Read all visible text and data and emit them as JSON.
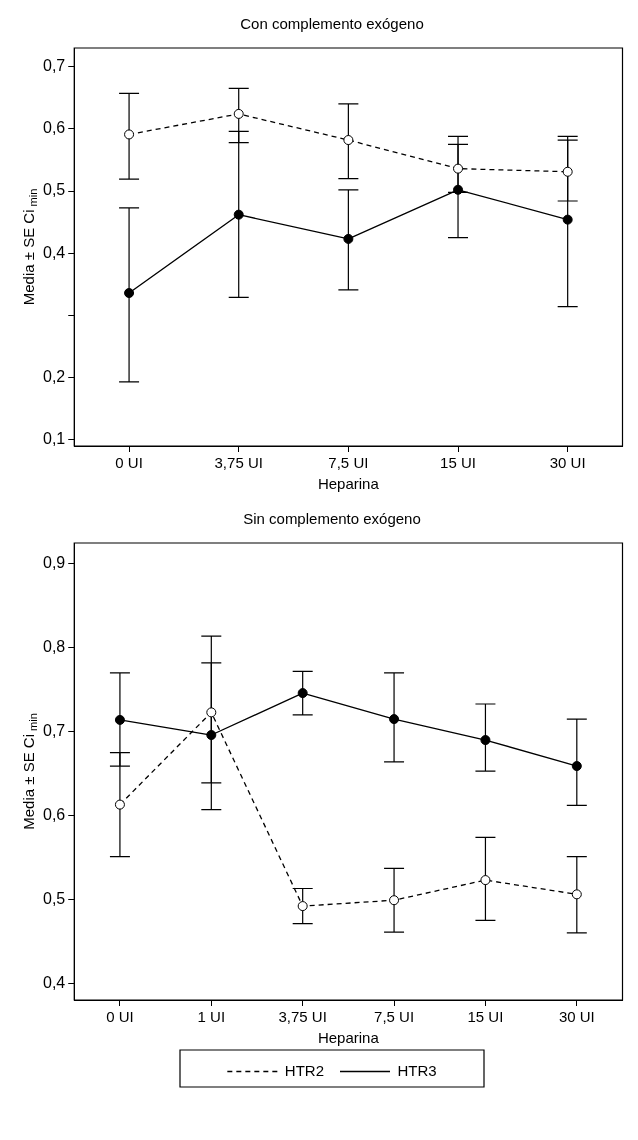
{
  "chart_data": [
    {
      "type": "line",
      "title": "Con complemento exógeno",
      "xlabel": "Heparina",
      "ylabel": "Media ± SE Ci$_{min}$",
      "categories": [
        "0 UI",
        "3,75 UI",
        "7,5 UI",
        "15 UI",
        "30 UI"
      ],
      "series": [
        {
          "color": "#000000",
          "line_style": "dashed",
          "values": [
            0.591,
            0.624,
            0.582,
            0.536,
            0.531
          ],
          "errors": [
            [
              0.519,
              0.657
            ],
            [
              0.578,
              0.665
            ],
            [
              0.52,
              0.64
            ],
            [
              0.498,
              0.575
            ],
            [
              0.484,
              0.582
            ]
          ]
        },
        {
          "color": "#000000",
          "line_style": "solid",
          "values": [
            0.336,
            0.462,
            0.423,
            0.502,
            0.454
          ],
          "errors": [
            [
              0.193,
              0.473
            ],
            [
              0.329,
              0.596
            ],
            [
              0.341,
              0.502
            ],
            [
              0.425,
              0.588
            ],
            [
              0.314,
              0.588
            ]
          ]
        }
      ],
      "marker": "circle",
      "grid": false,
      "legend": false,
      "ylim": [
        0.09,
        0.73
      ],
      "yticks": [
        {
          "value": 0.1,
          "label": "0,1"
        },
        {
          "value": 0.2,
          "label": "0,2"
        },
        {
          "value": 0.3,
          "label": null
        },
        {
          "value": 0.4,
          "label": "0,4"
        },
        {
          "value": 0.5,
          "label": "0,5"
        },
        {
          "value": 0.6,
          "label": "0,6"
        },
        {
          "value": 0.7,
          "label": "0,7"
        }
      ]
    },
    {
      "type": "line",
      "title": "Sin complemento exógeno",
      "xlabel": "Heparina",
      "ylabel": "Media ± SE Ci$_{min}$",
      "categories": [
        "0 UI",
        "1 UI",
        "3,75 UI",
        "7,5 UI",
        "15 UI",
        "30 UI"
      ],
      "series": [
        {
          "name": "HTR2",
          "color": "#000000",
          "line_style": "dashed",
          "values": [
            0.613,
            0.723,
            0.492,
            0.499,
            0.523,
            0.506
          ],
          "errors": [
            [
              0.551,
              0.675
            ],
            [
              0.639,
              0.814
            ],
            [
              0.471,
              0.513
            ],
            [
              0.461,
              0.537
            ],
            [
              0.475,
              0.574
            ],
            [
              0.46,
              0.551
            ]
          ]
        },
        {
          "name": "HTR3",
          "color": "#000000",
          "line_style": "solid",
          "values": [
            0.714,
            0.696,
            0.746,
            0.715,
            0.69,
            0.659
          ],
          "errors": [
            [
              0.659,
              0.77
            ],
            [
              0.607,
              0.782
            ],
            [
              0.72,
              0.772
            ],
            [
              0.664,
              0.77
            ],
            [
              0.653,
              0.733
            ],
            [
              0.612,
              0.715
            ]
          ]
        }
      ],
      "marker": "circle",
      "grid": false,
      "legend": "bottom",
      "ylim": [
        0.38,
        0.925
      ],
      "yticks": [
        {
          "value": 0.4,
          "label": "0,4"
        },
        {
          "value": 0.5,
          "label": "0,5"
        },
        {
          "value": 0.6,
          "label": "0,6"
        },
        {
          "value": 0.7,
          "label": "0,7"
        },
        {
          "value": 0.8,
          "label": "0,8"
        },
        {
          "value": 0.9,
          "label": "0,9"
        }
      ]
    }
  ]
}
